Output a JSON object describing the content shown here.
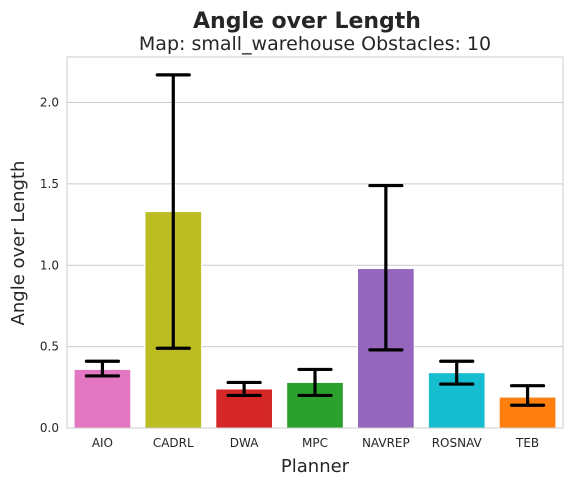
{
  "chart_data": {
    "type": "bar",
    "title": "Angle over Length",
    "subtitle": "Map: small_warehouse Obstacles: 10",
    "xlabel": "Planner",
    "ylabel": "Angle over Length",
    "ylim": [
      0,
      2.28
    ],
    "yticks": [
      "0.0",
      "0.5",
      "1.0",
      "1.5",
      "2.0"
    ],
    "ytick_values": [
      0,
      0.5,
      1.0,
      1.5,
      2.0
    ],
    "grid": true,
    "categories": [
      "AIO",
      "CADRL",
      "DWA",
      "MPC",
      "NAVREP",
      "ROSNAV",
      "TEB"
    ],
    "values": [
      0.36,
      1.33,
      0.24,
      0.28,
      0.98,
      0.34,
      0.19
    ],
    "error_low": [
      0.32,
      0.49,
      0.2,
      0.2,
      0.48,
      0.27,
      0.14
    ],
    "error_high": [
      0.41,
      2.17,
      0.28,
      0.36,
      1.49,
      0.41,
      0.26
    ],
    "colors": [
      "#e377c2",
      "#bcbd22",
      "#d62728",
      "#2ca02c",
      "#9467bd",
      "#17becf",
      "#ff7f0e"
    ],
    "error_bar_color": "#000000",
    "grid_color": "#cccccc",
    "spine_color": "#cccccc"
  }
}
